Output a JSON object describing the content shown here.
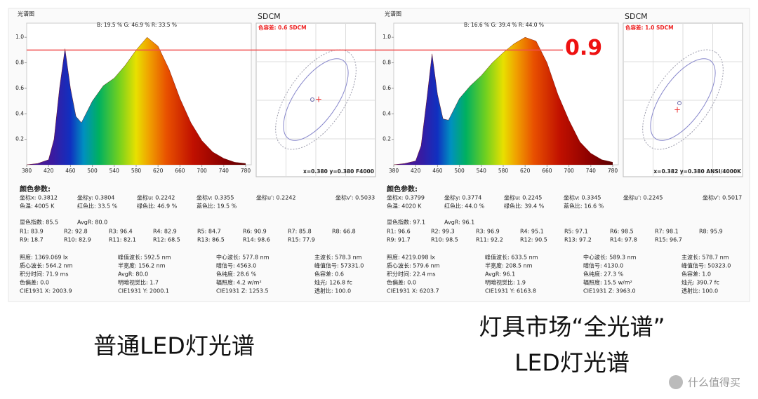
{
  "panels": [
    {
      "spectrum": {
        "type": "area",
        "title": "光谱图",
        "legend": "B: 19.5 %  G: 46.9 %  R: 33.5 %",
        "x": [
          380,
          400,
          420,
          430,
          440,
          450,
          460,
          470,
          480,
          500,
          520,
          540,
          560,
          580,
          600,
          620,
          640,
          660,
          680,
          700,
          720,
          740,
          760,
          780
        ],
        "values": [
          0,
          0.01,
          0.04,
          0.2,
          0.6,
          0.91,
          0.6,
          0.38,
          0.33,
          0.5,
          0.62,
          0.68,
          0.78,
          0.9,
          1.0,
          0.93,
          0.75,
          0.52,
          0.33,
          0.19,
          0.1,
          0.05,
          0.02,
          0.01
        ],
        "xlim": [
          380,
          780
        ],
        "ylim": [
          0,
          1.1
        ],
        "xticks": [
          380,
          420,
          460,
          500,
          540,
          580,
          620,
          660,
          700,
          740,
          780
        ],
        "yticks": [
          0.2,
          0.4,
          0.6,
          0.8,
          {
            "value": 1,
            "label": "1.0"
          }
        ]
      },
      "sdcm": {
        "title": "SDCM",
        "tolerance": "色容差: 0.6 SDCM",
        "footer": "x=0.380 y=0.380 F4000"
      },
      "params_title": "颜色参数:",
      "coords": [
        "坐标x: 0.3812",
        "坐标y: 0.3804",
        "坐标u: 0.2242",
        "坐标v: 0.3355",
        "坐标u': 0.2242",
        "坐标v': 0.5033"
      ],
      "ratios": [
        "色温: 4005 K",
        "红色比: 33.5 %",
        "绿色比: 46.9 %",
        "蓝色比: 19.5 %"
      ],
      "cri": [
        "显色指数: 85.5",
        "AvgR: 80.0"
      ],
      "r_values": [
        [
          "R1: 83.9",
          "R2: 92.8",
          "R3: 96.4",
          "R4: 82.9",
          "R5: 84.7",
          "R6: 90.9",
          "R7: 85.8",
          "R8: 66.8"
        ],
        [
          "R9: 18.7",
          "R10: 82.9",
          "R11: 82.1",
          "R12: 68.5",
          "R13: 86.5",
          "R14: 98.6",
          "R15: 77.9"
        ]
      ],
      "photometric": [
        [
          "照度: 1369.069 lx",
          "峰值波长: 592.5 nm",
          "中心波长: 577.8 nm",
          "主波长: 578.3 nm"
        ],
        [
          "质心波长: 564.2 nm",
          "半宽度: 156.2 nm",
          "暗信号: 4563.0",
          "峰值信号: 57331.0"
        ],
        [
          "积分时间: 71.9 ms",
          "AvgR: 80.0",
          "色纯度: 28.6 %",
          "色容差: 0.6"
        ],
        [
          "色偏差: 0.0",
          "明暗视觉比: 1.7",
          "辐照度: 4.2 w/m²",
          "烛光: 126.8 fc"
        ],
        [
          "CIE1931 X: 2003.9",
          "CIE1931 Y: 2000.1",
          "CIE1931 Z: 1253.5",
          "透射比: 100.0"
        ]
      ]
    },
    {
      "spectrum": {
        "type": "area",
        "title": "光谱图",
        "legend": "B: 16.6 %  G: 39.4 %  R: 44.0 %",
        "x": [
          380,
          400,
          420,
          430,
          440,
          450,
          460,
          470,
          480,
          500,
          520,
          540,
          560,
          580,
          600,
          620,
          640,
          660,
          680,
          700,
          720,
          740,
          760,
          780
        ],
        "values": [
          0,
          0.01,
          0.03,
          0.15,
          0.5,
          0.87,
          0.55,
          0.36,
          0.35,
          0.52,
          0.62,
          0.7,
          0.8,
          0.88,
          0.95,
          1.0,
          0.97,
          0.8,
          0.55,
          0.35,
          0.18,
          0.09,
          0.04,
          0.02
        ],
        "xlim": [
          380,
          780
        ],
        "ylim": [
          0,
          1.1
        ],
        "xticks": [
          380,
          420,
          460,
          500,
          540,
          580,
          620,
          660,
          700,
          740,
          780
        ],
        "yticks": [
          0.2,
          0.4,
          0.6,
          0.8,
          {
            "value": 1,
            "label": "1.0"
          }
        ]
      },
      "sdcm": {
        "title": "SDCM",
        "tolerance": "色容差: 1.0 SDCM",
        "footer": "x=0.382 y=0.380 ANSI/4000K"
      },
      "params_title": "颜色参数:",
      "coords": [
        "坐标x: 0.3799",
        "坐标y: 0.3774",
        "坐标u: 0.2245",
        "坐标v: 0.3345",
        "坐标u': 0.2245",
        "坐标v': 0.5017"
      ],
      "ratios": [
        "色温: 4020 K",
        "红色比: 44.0 %",
        "绿色比: 39.4 %",
        "蓝色比: 16.6 %"
      ],
      "cri": [
        "显色指数: 97.1",
        "AvgR: 96.1"
      ],
      "r_values": [
        [
          "R1: 96.6",
          "R2: 99.3",
          "R3: 96.9",
          "R4: 95.1",
          "R5: 97.1",
          "R6: 98.5",
          "R7: 98.1",
          "R8: 95.9"
        ],
        [
          "R9: 91.7",
          "R10: 98.5",
          "R11: 92.2",
          "R12: 90.5",
          "R13: 97.2",
          "R14: 97.8",
          "R15: 96.7"
        ]
      ],
      "photometric": [
        [
          "照度: 4219.098 lx",
          "峰值波长: 633.5 nm",
          "中心波长: 589.3 nm",
          "主波长: 578.7 nm"
        ],
        [
          "质心波长: 579.6 nm",
          "半宽度: 208.5 nm",
          "暗信号: 4130.0",
          "峰值信号: 50323.0"
        ],
        [
          "积分时间: 22.4 ms",
          "AvgR: 96.1",
          "色纯度: 27.3 %",
          "色容差: 1.0"
        ],
        [
          "色偏差: 0.0",
          "明暗视觉比: 1.9",
          "辐照度: 15.5 w/m²",
          "烛光: 390.7 fc"
        ],
        [
          "CIE1931 X: 6203.7",
          "CIE1931 Y: 6163.8",
          "CIE1931 Z: 3963.0",
          "透射比: 100.0"
        ]
      ]
    }
  ],
  "reference_line": 0.9,
  "captions": [
    "普通LED灯光谱",
    "灯具市场“全光谱”",
    "LED灯光谱"
  ],
  "watermark": "什么值得买"
}
